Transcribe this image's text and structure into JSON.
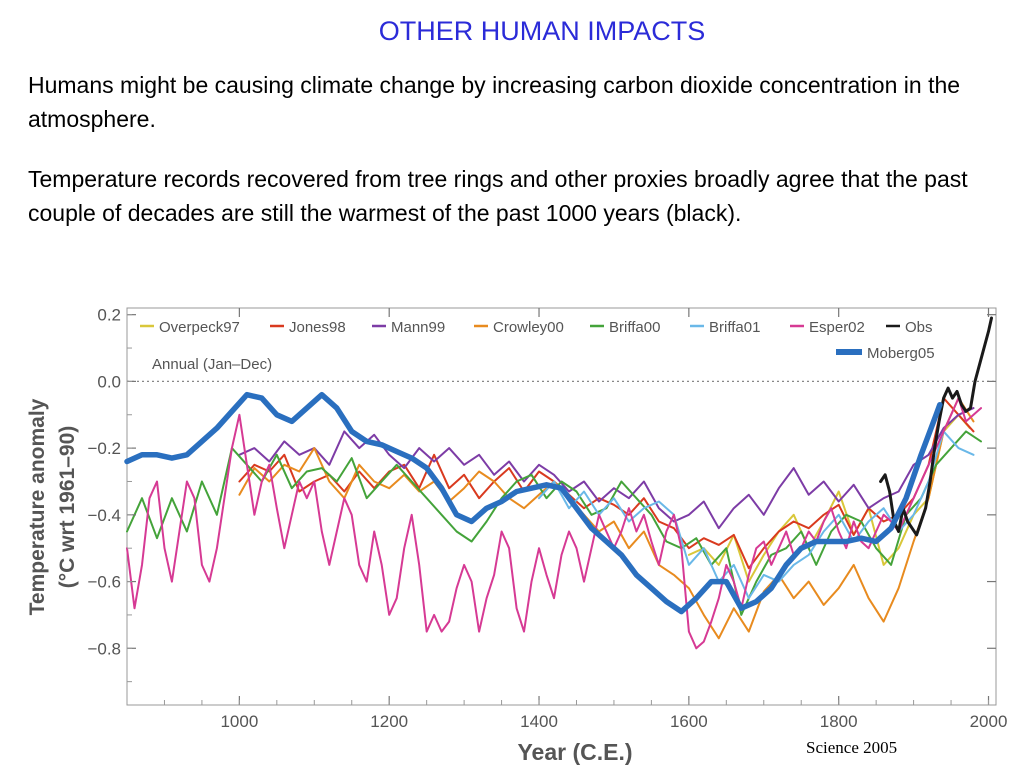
{
  "slide": {
    "title": "OTHER HUMAN IMPACTS",
    "paragraphs": [
      "Humans might be causing climate change by increasing carbon dioxide concentration in the atmosphere.",
      "Temperature records recovered from tree rings and other proxies broadly agree that the past couple of decades are still the warmest of the past 1000 years (black)."
    ],
    "credit": "Science 2005"
  },
  "chart_data": {
    "type": "line",
    "title": "",
    "annotation": "Annual (Jan–Dec)",
    "xlabel": "Year (C.E.)",
    "ylabel_lines": [
      "Temperature anomaly",
      "(°C wrt 1961–90)"
    ],
    "xlim": [
      850,
      2010
    ],
    "ylim": [
      -0.97,
      0.22
    ],
    "xticks": [
      1000,
      1200,
      1400,
      1600,
      1800,
      2000
    ],
    "yticks": [
      0.2,
      0.0,
      -0.2,
      -0.4,
      -0.6,
      -0.8
    ],
    "ytick_labels": [
      "0.2",
      "0.0",
      "−0.2",
      "−0.4",
      "−0.6",
      "−0.8"
    ],
    "zero_line": "dotted",
    "legend_position": "top",
    "series": [
      {
        "name": "Overpeck97",
        "color": "#d9c73a",
        "x": [
          1600,
          1620,
          1640,
          1660,
          1680,
          1700,
          1720,
          1740,
          1760,
          1780,
          1800,
          1820,
          1840,
          1860,
          1880,
          1900,
          1920,
          1940,
          1960,
          1975
        ],
        "y": [
          -0.52,
          -0.5,
          -0.55,
          -0.46,
          -0.6,
          -0.52,
          -0.45,
          -0.4,
          -0.5,
          -0.42,
          -0.33,
          -0.46,
          -0.38,
          -0.55,
          -0.5,
          -0.4,
          -0.35,
          -0.15,
          -0.1,
          -0.14
        ]
      },
      {
        "name": "Jones98",
        "color": "#d93a1f",
        "x": [
          1000,
          1020,
          1040,
          1060,
          1080,
          1100,
          1120,
          1140,
          1160,
          1180,
          1200,
          1220,
          1240,
          1260,
          1280,
          1300,
          1320,
          1340,
          1360,
          1380,
          1400,
          1420,
          1440,
          1460,
          1480,
          1500,
          1520,
          1540,
          1560,
          1580,
          1600,
          1620,
          1640,
          1660,
          1680,
          1700,
          1720,
          1740,
          1760,
          1780,
          1800,
          1820,
          1840,
          1860,
          1880,
          1900,
          1920,
          1940,
          1960,
          1980
        ],
        "y": [
          -0.3,
          -0.25,
          -0.27,
          -0.22,
          -0.33,
          -0.3,
          -0.28,
          -0.33,
          -0.27,
          -0.32,
          -0.27,
          -0.25,
          -0.32,
          -0.22,
          -0.32,
          -0.28,
          -0.35,
          -0.3,
          -0.26,
          -0.33,
          -0.27,
          -0.3,
          -0.34,
          -0.38,
          -0.35,
          -0.37,
          -0.4,
          -0.35,
          -0.42,
          -0.44,
          -0.5,
          -0.47,
          -0.49,
          -0.46,
          -0.56,
          -0.5,
          -0.45,
          -0.42,
          -0.44,
          -0.4,
          -0.37,
          -0.46,
          -0.38,
          -0.42,
          -0.4,
          -0.35,
          -0.25,
          -0.05,
          -0.1,
          -0.15
        ]
      },
      {
        "name": "Mann99",
        "color": "#7d3ca6",
        "x": [
          1000,
          1020,
          1040,
          1060,
          1080,
          1100,
          1120,
          1140,
          1160,
          1180,
          1200,
          1220,
          1240,
          1260,
          1280,
          1300,
          1320,
          1340,
          1360,
          1380,
          1400,
          1420,
          1440,
          1460,
          1480,
          1500,
          1520,
          1540,
          1560,
          1580,
          1600,
          1620,
          1640,
          1660,
          1680,
          1700,
          1720,
          1740,
          1760,
          1780,
          1800,
          1820,
          1840,
          1860,
          1880,
          1900,
          1920,
          1940,
          1960,
          1980
        ],
        "y": [
          -0.22,
          -0.2,
          -0.24,
          -0.18,
          -0.22,
          -0.2,
          -0.25,
          -0.15,
          -0.2,
          -0.16,
          -0.22,
          -0.26,
          -0.2,
          -0.24,
          -0.2,
          -0.25,
          -0.22,
          -0.28,
          -0.24,
          -0.3,
          -0.25,
          -0.28,
          -0.33,
          -0.3,
          -0.36,
          -0.32,
          -0.35,
          -0.3,
          -0.38,
          -0.42,
          -0.4,
          -0.36,
          -0.44,
          -0.38,
          -0.34,
          -0.4,
          -0.32,
          -0.26,
          -0.34,
          -0.3,
          -0.36,
          -0.31,
          -0.38,
          -0.35,
          -0.33,
          -0.25,
          -0.22,
          -0.14,
          -0.1,
          -0.08
        ]
      },
      {
        "name": "Crowley00",
        "color": "#e88b1f",
        "x": [
          1000,
          1020,
          1040,
          1060,
          1080,
          1100,
          1120,
          1140,
          1160,
          1180,
          1200,
          1220,
          1240,
          1260,
          1280,
          1300,
          1320,
          1340,
          1360,
          1380,
          1400,
          1420,
          1440,
          1460,
          1480,
          1500,
          1520,
          1540,
          1560,
          1580,
          1600,
          1620,
          1640,
          1660,
          1680,
          1700,
          1720,
          1740,
          1760,
          1780,
          1800,
          1820,
          1840,
          1860,
          1880,
          1900,
          1920,
          1940,
          1960,
          1980
        ],
        "y": [
          -0.34,
          -0.26,
          -0.3,
          -0.25,
          -0.27,
          -0.2,
          -0.3,
          -0.35,
          -0.25,
          -0.3,
          -0.32,
          -0.28,
          -0.33,
          -0.3,
          -0.36,
          -0.32,
          -0.27,
          -0.3,
          -0.35,
          -0.38,
          -0.34,
          -0.3,
          -0.35,
          -0.4,
          -0.45,
          -0.42,
          -0.5,
          -0.45,
          -0.55,
          -0.58,
          -0.62,
          -0.7,
          -0.77,
          -0.68,
          -0.75,
          -0.63,
          -0.58,
          -0.65,
          -0.6,
          -0.67,
          -0.62,
          -0.55,
          -0.65,
          -0.72,
          -0.62,
          -0.48,
          -0.35,
          -0.15,
          -0.05,
          -0.12
        ]
      },
      {
        "name": "Briffa00",
        "color": "#44a33a",
        "x": [
          850,
          870,
          890,
          910,
          930,
          950,
          970,
          990,
          1010,
          1030,
          1050,
          1070,
          1090,
          1110,
          1130,
          1150,
          1170,
          1190,
          1210,
          1230,
          1250,
          1270,
          1290,
          1310,
          1330,
          1350,
          1370,
          1390,
          1410,
          1430,
          1450,
          1470,
          1490,
          1510,
          1530,
          1550,
          1570,
          1590,
          1610,
          1630,
          1650,
          1670,
          1690,
          1710,
          1730,
          1750,
          1770,
          1790,
          1810,
          1830,
          1850,
          1870,
          1890,
          1910,
          1930,
          1950,
          1970,
          1990
        ],
        "y": [
          -0.45,
          -0.35,
          -0.47,
          -0.35,
          -0.45,
          -0.3,
          -0.4,
          -0.2,
          -0.25,
          -0.3,
          -0.22,
          -0.32,
          -0.27,
          -0.26,
          -0.3,
          -0.23,
          -0.35,
          -0.3,
          -0.25,
          -0.3,
          -0.35,
          -0.4,
          -0.45,
          -0.48,
          -0.42,
          -0.35,
          -0.3,
          -0.28,
          -0.35,
          -0.3,
          -0.33,
          -0.4,
          -0.38,
          -0.3,
          -0.35,
          -0.4,
          -0.48,
          -0.5,
          -0.47,
          -0.55,
          -0.5,
          -0.7,
          -0.6,
          -0.52,
          -0.5,
          -0.45,
          -0.55,
          -0.45,
          -0.4,
          -0.42,
          -0.5,
          -0.55,
          -0.4,
          -0.35,
          -0.25,
          -0.2,
          -0.15,
          -0.18
        ]
      },
      {
        "name": "Briffa01",
        "color": "#6ab8e8",
        "x": [
          1400,
          1420,
          1440,
          1460,
          1480,
          1500,
          1520,
          1540,
          1560,
          1580,
          1600,
          1620,
          1640,
          1660,
          1680,
          1700,
          1720,
          1740,
          1760,
          1780,
          1800,
          1820,
          1840,
          1860,
          1880,
          1900,
          1920,
          1940,
          1960,
          1980
        ],
        "y": [
          -0.35,
          -0.3,
          -0.38,
          -0.33,
          -0.4,
          -0.35,
          -0.42,
          -0.38,
          -0.36,
          -0.4,
          -0.55,
          -0.5,
          -0.6,
          -0.55,
          -0.65,
          -0.58,
          -0.6,
          -0.55,
          -0.52,
          -0.45,
          -0.4,
          -0.48,
          -0.42,
          -0.38,
          -0.45,
          -0.4,
          -0.3,
          -0.15,
          -0.2,
          -0.22
        ]
      },
      {
        "name": "Esper02",
        "color": "#d63a94",
        "x": [
          850,
          860,
          870,
          880,
          890,
          900,
          910,
          920,
          930,
          940,
          950,
          960,
          970,
          980,
          990,
          1000,
          1010,
          1020,
          1030,
          1040,
          1050,
          1060,
          1070,
          1080,
          1090,
          1100,
          1110,
          1120,
          1130,
          1140,
          1150,
          1160,
          1170,
          1180,
          1190,
          1200,
          1210,
          1220,
          1230,
          1240,
          1250,
          1260,
          1270,
          1280,
          1290,
          1300,
          1310,
          1320,
          1330,
          1340,
          1350,
          1360,
          1370,
          1380,
          1390,
          1400,
          1410,
          1420,
          1430,
          1440,
          1450,
          1460,
          1470,
          1480,
          1490,
          1500,
          1510,
          1520,
          1530,
          1540,
          1550,
          1560,
          1570,
          1580,
          1590,
          1600,
          1610,
          1620,
          1630,
          1640,
          1650,
          1660,
          1670,
          1680,
          1690,
          1700,
          1710,
          1720,
          1730,
          1740,
          1750,
          1760,
          1770,
          1780,
          1790,
          1800,
          1810,
          1820,
          1830,
          1840,
          1850,
          1860,
          1870,
          1880,
          1890,
          1900,
          1910,
          1920,
          1930,
          1940,
          1950,
          1960,
          1970,
          1980,
          1990
        ],
        "y": [
          -0.5,
          -0.68,
          -0.55,
          -0.35,
          -0.3,
          -0.5,
          -0.6,
          -0.45,
          -0.3,
          -0.35,
          -0.55,
          -0.6,
          -0.5,
          -0.35,
          -0.2,
          -0.1,
          -0.25,
          -0.4,
          -0.3,
          -0.25,
          -0.38,
          -0.5,
          -0.4,
          -0.3,
          -0.35,
          -0.3,
          -0.45,
          -0.55,
          -0.45,
          -0.35,
          -0.4,
          -0.55,
          -0.6,
          -0.45,
          -0.55,
          -0.7,
          -0.65,
          -0.5,
          -0.4,
          -0.55,
          -0.75,
          -0.7,
          -0.75,
          -0.72,
          -0.62,
          -0.55,
          -0.6,
          -0.75,
          -0.65,
          -0.58,
          -0.45,
          -0.5,
          -0.68,
          -0.75,
          -0.6,
          -0.5,
          -0.58,
          -0.65,
          -0.52,
          -0.45,
          -0.5,
          -0.6,
          -0.5,
          -0.4,
          -0.45,
          -0.5,
          -0.45,
          -0.38,
          -0.45,
          -0.4,
          -0.48,
          -0.55,
          -0.45,
          -0.4,
          -0.5,
          -0.75,
          -0.8,
          -0.78,
          -0.72,
          -0.65,
          -0.55,
          -0.6,
          -0.68,
          -0.58,
          -0.5,
          -0.48,
          -0.55,
          -0.5,
          -0.45,
          -0.52,
          -0.5,
          -0.45,
          -0.48,
          -0.42,
          -0.38,
          -0.45,
          -0.5,
          -0.42,
          -0.48,
          -0.5,
          -0.45,
          -0.4,
          -0.42,
          -0.45,
          -0.4,
          -0.35,
          -0.3,
          -0.25,
          -0.2,
          -0.15,
          -0.1,
          -0.05,
          -0.12,
          -0.1,
          -0.08
        ]
      },
      {
        "name": "Obs",
        "color": "#1a1a1a",
        "x": [
          1856,
          1862,
          1868,
          1874,
          1880,
          1886,
          1892,
          1898,
          1904,
          1910,
          1916,
          1922,
          1928,
          1934,
          1940,
          1946,
          1952,
          1958,
          1964,
          1970,
          1976,
          1982,
          1988,
          1994,
          2000,
          2004
        ],
        "y": [
          -0.3,
          -0.28,
          -0.33,
          -0.42,
          -0.45,
          -0.38,
          -0.42,
          -0.44,
          -0.46,
          -0.42,
          -0.38,
          -0.3,
          -0.2,
          -0.12,
          -0.05,
          -0.02,
          -0.05,
          -0.03,
          -0.07,
          -0.09,
          -0.08,
          0.0,
          0.05,
          0.1,
          0.15,
          0.19
        ]
      },
      {
        "name": "Moberg05",
        "color": "#2a6fbf",
        "x": [
          850,
          870,
          890,
          910,
          930,
          950,
          970,
          990,
          1010,
          1030,
          1050,
          1070,
          1090,
          1110,
          1130,
          1150,
          1170,
          1190,
          1210,
          1230,
          1250,
          1270,
          1290,
          1310,
          1330,
          1350,
          1370,
          1390,
          1410,
          1430,
          1450,
          1470,
          1490,
          1510,
          1530,
          1550,
          1570,
          1590,
          1610,
          1630,
          1650,
          1670,
          1690,
          1710,
          1730,
          1750,
          1770,
          1790,
          1810,
          1830,
          1850,
          1870,
          1890,
          1910,
          1930,
          1935
        ],
        "y": [
          -0.24,
          -0.22,
          -0.22,
          -0.23,
          -0.22,
          -0.18,
          -0.14,
          -0.09,
          -0.04,
          -0.05,
          -0.1,
          -0.12,
          -0.08,
          -0.04,
          -0.08,
          -0.15,
          -0.18,
          -0.19,
          -0.21,
          -0.23,
          -0.26,
          -0.32,
          -0.4,
          -0.42,
          -0.38,
          -0.36,
          -0.33,
          -0.32,
          -0.31,
          -0.32,
          -0.38,
          -0.44,
          -0.48,
          -0.52,
          -0.58,
          -0.62,
          -0.66,
          -0.69,
          -0.65,
          -0.6,
          -0.6,
          -0.68,
          -0.66,
          -0.62,
          -0.55,
          -0.5,
          -0.48,
          -0.48,
          -0.48,
          -0.47,
          -0.48,
          -0.44,
          -0.35,
          -0.22,
          -0.1,
          -0.07
        ]
      }
    ]
  }
}
